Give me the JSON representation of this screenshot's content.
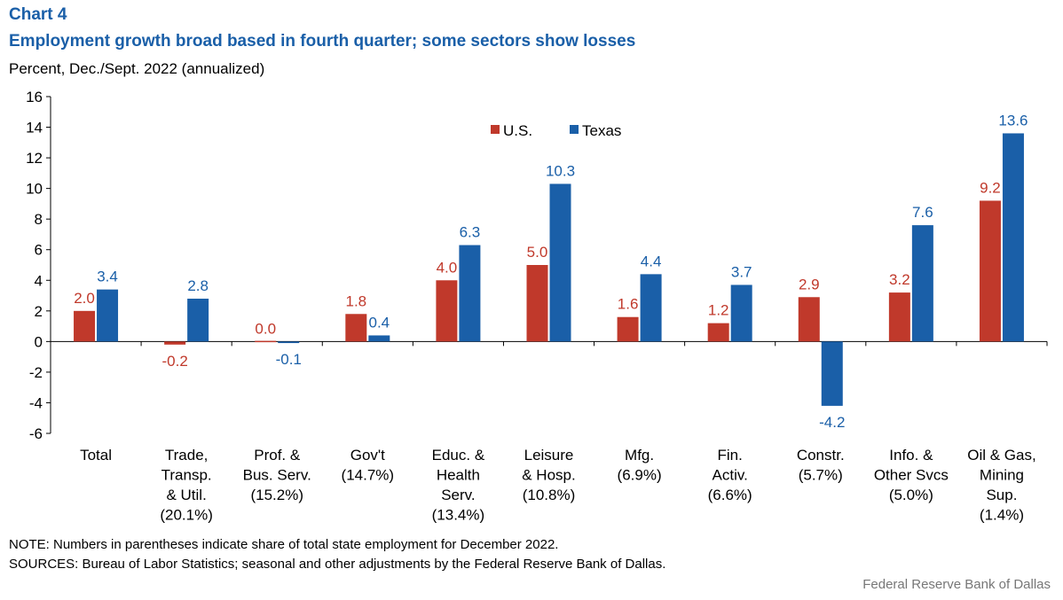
{
  "header": {
    "chart_number": "Chart 4",
    "title": "Employment growth broad based in fourth quarter; some sectors show losses",
    "subtitle": "Percent, Dec./Sept. 2022 (annualized)"
  },
  "footer": {
    "note": "NOTE: Numbers in parentheses indicate share of total state employment for December 2022.",
    "sources": "SOURCES: Bureau of Labor Statistics; seasonal and other adjustments by the Federal Reserve Bank of Dallas.",
    "credit": "Federal Reserve Bank of Dallas"
  },
  "chart_data": {
    "type": "bar",
    "title": "Employment growth broad based in fourth quarter; some sectors show losses",
    "ylabel": "Percent, Dec./Sept. 2022 (annualized)",
    "ylim": [
      -6,
      16
    ],
    "yticks": [
      16,
      14,
      12,
      10,
      8,
      6,
      4,
      2,
      0,
      -2,
      -4,
      -6
    ],
    "grid": false,
    "legend_position": "top-center",
    "categories": [
      [
        "Total"
      ],
      [
        "Trade,",
        "Transp.",
        "& Util.",
        "(20.1%)"
      ],
      [
        "Prof. &",
        "Bus. Serv.",
        "(15.2%)"
      ],
      [
        "Gov't",
        "(14.7%)"
      ],
      [
        "Educ. &",
        "Health",
        "Serv.",
        "(13.4%)"
      ],
      [
        "Leisure",
        "& Hosp.",
        "(10.8%)"
      ],
      [
        "Mfg.",
        "(6.9%)"
      ],
      [
        "Fin.",
        "Activ.",
        "(6.6%)"
      ],
      [
        "Constr.",
        "(5.7%)"
      ],
      [
        "Info. &",
        "Other Svcs",
        "(5.0%)"
      ],
      [
        "Oil & Gas,",
        "Mining",
        "Sup.",
        "(1.4%)"
      ]
    ],
    "series": [
      {
        "name": "U.S.",
        "color": "#c0392b",
        "values": [
          2.0,
          -0.2,
          0.0,
          1.8,
          4.0,
          5.0,
          1.6,
          1.2,
          2.9,
          3.2,
          9.2
        ],
        "labels": [
          "2.0",
          "-0.2",
          "0.0",
          "1.8",
          "4.0",
          "5.0",
          "1.6",
          "1.2",
          "2.9",
          "3.2",
          "9.2"
        ]
      },
      {
        "name": "Texas",
        "color": "#1a5fa8",
        "values": [
          3.4,
          2.8,
          -0.1,
          0.4,
          6.3,
          10.3,
          4.4,
          3.7,
          -4.2,
          7.6,
          13.6
        ],
        "labels": [
          "3.4",
          "2.8",
          "-0.1",
          "0.4",
          "6.3",
          "10.3",
          "4.4",
          "3.7",
          "-4.2",
          "7.6",
          "13.6"
        ]
      }
    ]
  }
}
